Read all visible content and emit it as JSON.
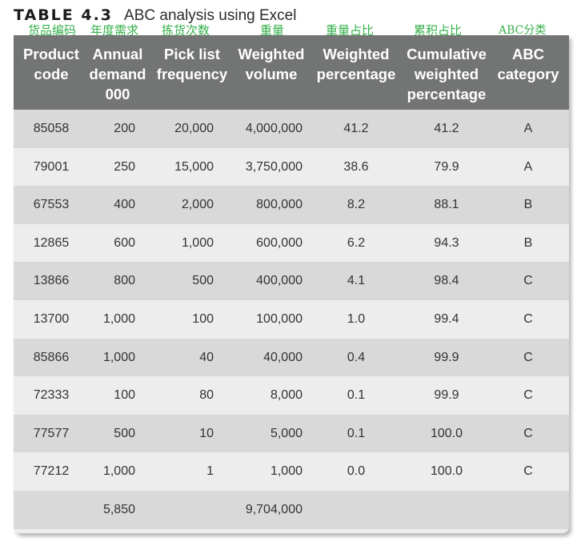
{
  "caption": {
    "label": "TABLE 4.3",
    "title": "ABC analysis using Excel"
  },
  "chinese_labels": [
    "货品编码",
    "年度需求",
    "拣货次数",
    "重量",
    "重量占比",
    "累积占比",
    "ABC分类"
  ],
  "columns": [
    {
      "lines": [
        "Product",
        "code"
      ]
    },
    {
      "lines": [
        "Annual",
        "demand",
        "000"
      ]
    },
    {
      "lines": [
        "Pick list",
        "frequency"
      ]
    },
    {
      "lines": [
        "Weighted",
        "volume"
      ]
    },
    {
      "lines": [
        "Weighted",
        "percentage"
      ]
    },
    {
      "lines": [
        "Cumulative",
        "weighted",
        "percentage"
      ]
    },
    {
      "lines": [
        "ABC",
        "category"
      ]
    }
  ],
  "rows": [
    [
      "85058",
      "200",
      "20,000",
      "4,000,000",
      "41.2",
      "41.2",
      "A"
    ],
    [
      "79001",
      "250",
      "15,000",
      "3,750,000",
      "38.6",
      "79.9",
      "A"
    ],
    [
      "67553",
      "400",
      "2,000",
      "800,000",
      "8.2",
      "88.1",
      "B"
    ],
    [
      "12865",
      "600",
      "1,000",
      "600,000",
      "6.2",
      "94.3",
      "B"
    ],
    [
      "13866",
      "800",
      "500",
      "400,000",
      "4.1",
      "98.4",
      "C"
    ],
    [
      "13700",
      "1,000",
      "100",
      "100,000",
      "1.0",
      "99.4",
      "C"
    ],
    [
      "85866",
      "1,000",
      "40",
      "40,000",
      "0.4",
      "99.9",
      "C"
    ],
    [
      "72333",
      "100",
      "80",
      "8,000",
      "0.1",
      "99.9",
      "C"
    ],
    [
      "77577",
      "500",
      "10",
      "5,000",
      "0.1",
      "100.0",
      "C"
    ],
    [
      "77212",
      "1,000",
      "1",
      "1,000",
      "0.0",
      "100.0",
      "C"
    ]
  ],
  "totals": {
    "annual_demand": "5,850",
    "weighted_volume": "9,704,000"
  }
}
